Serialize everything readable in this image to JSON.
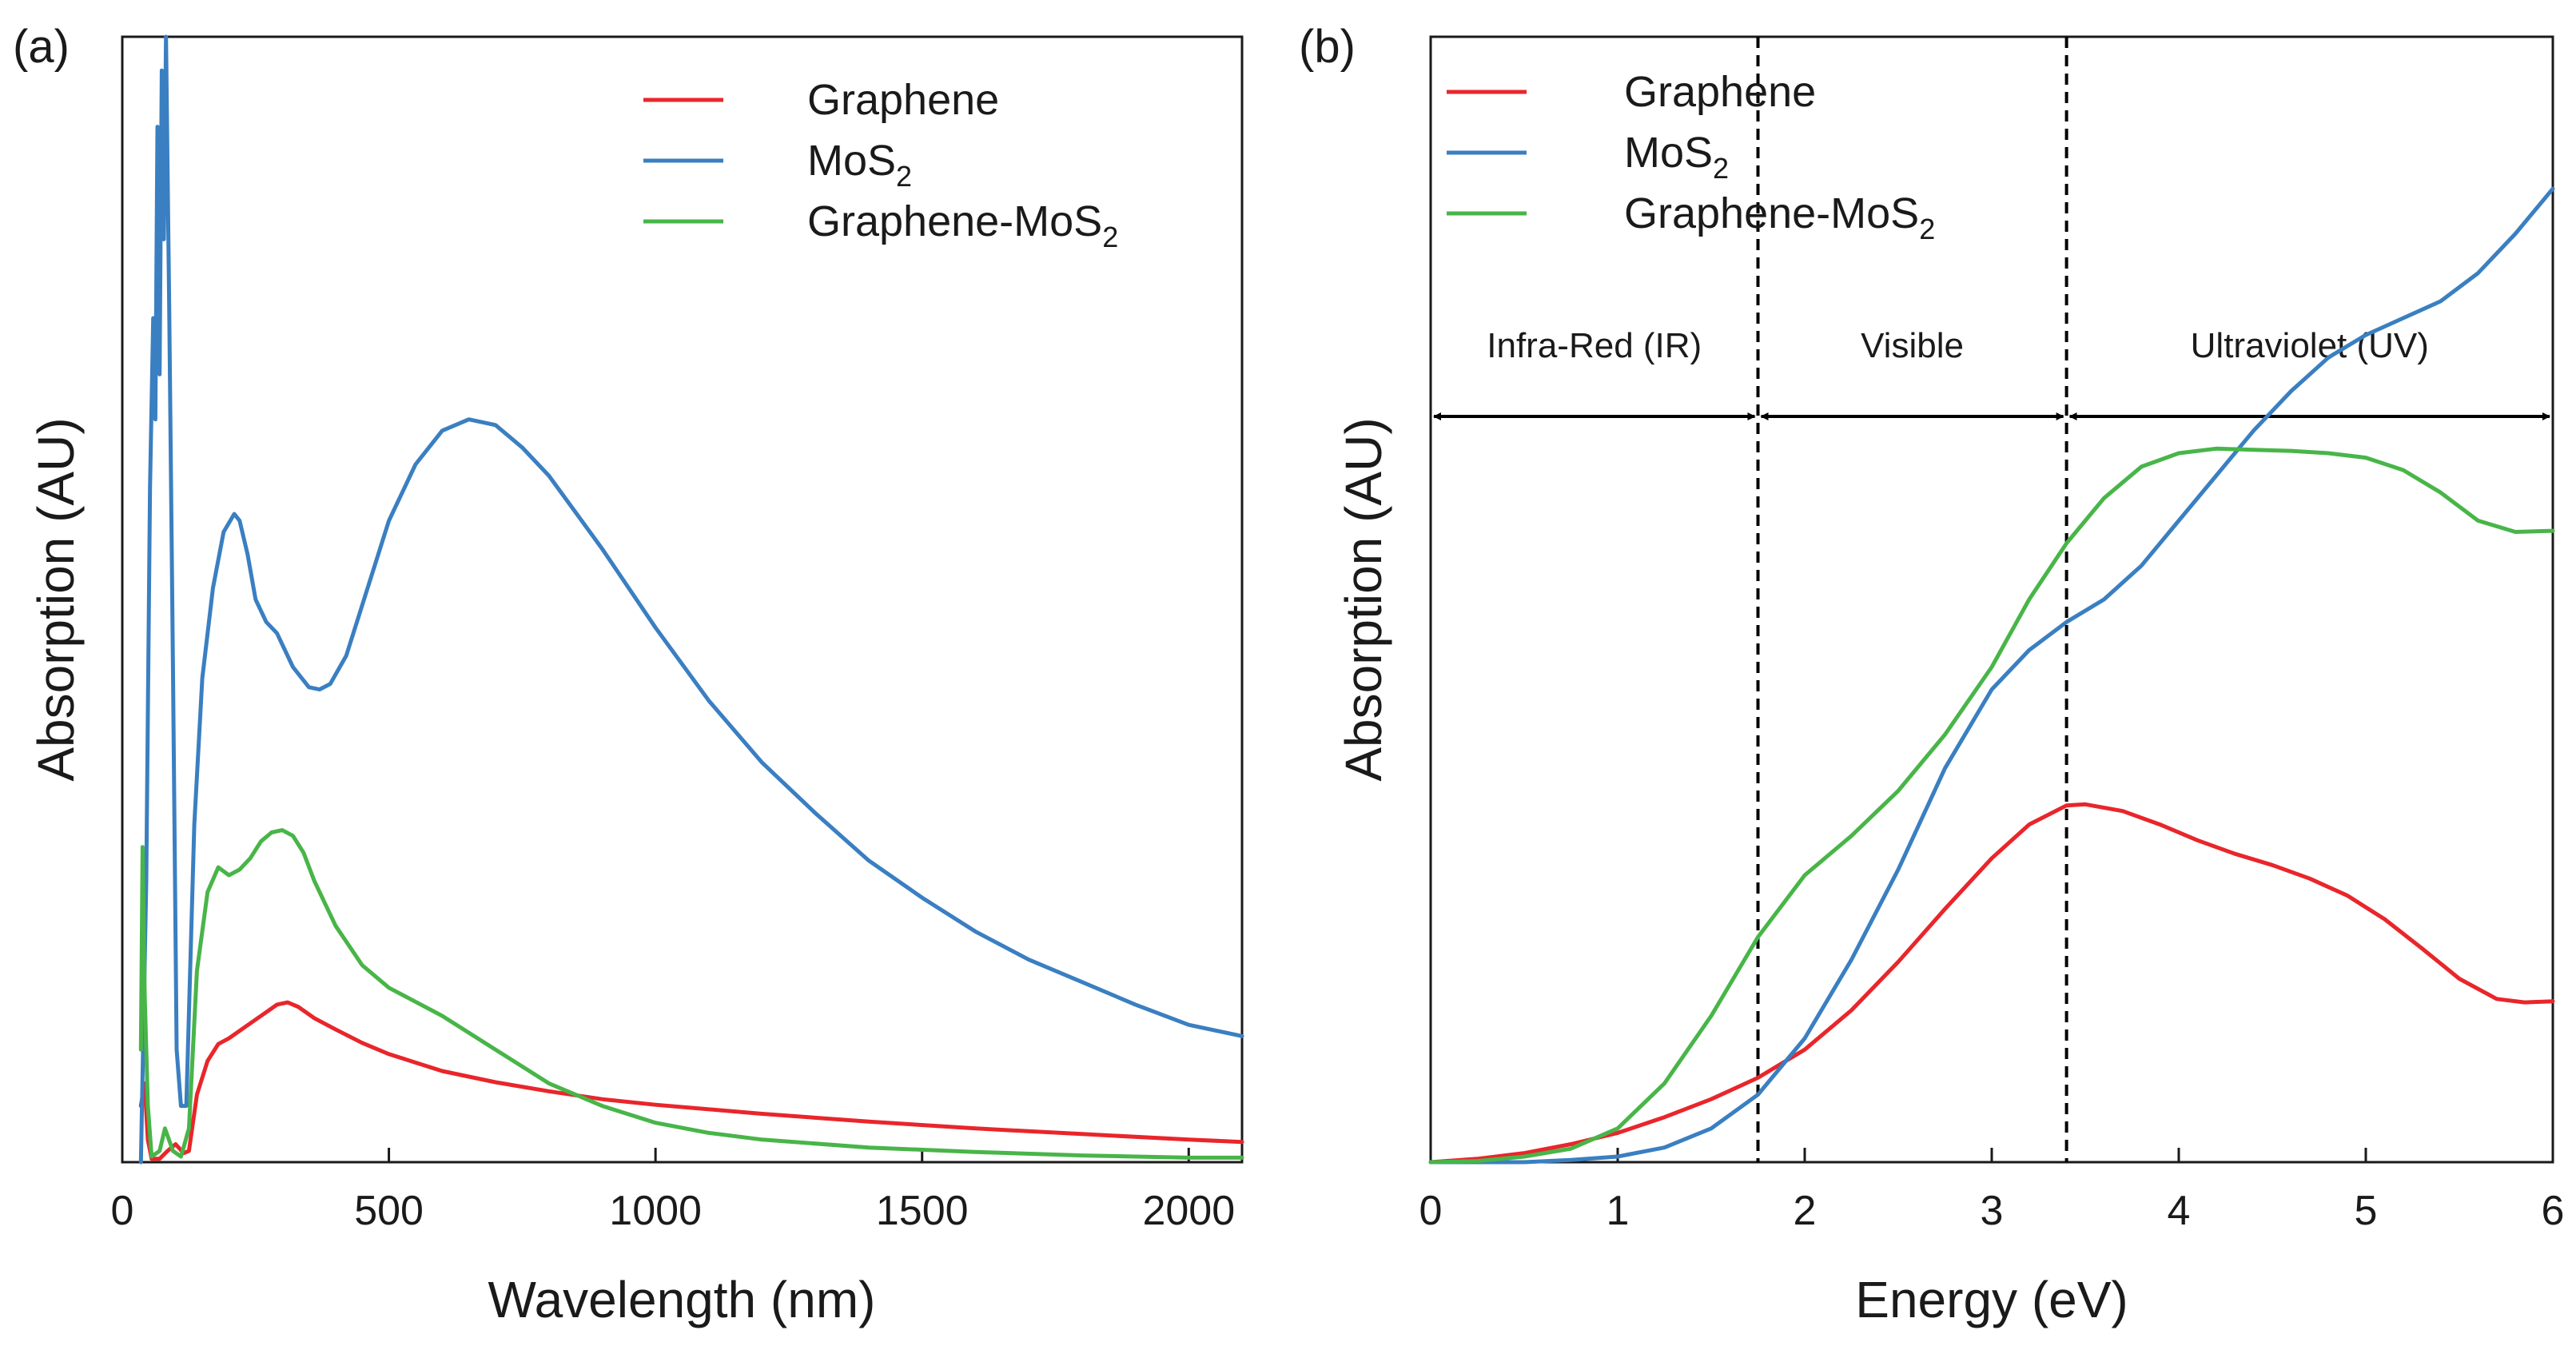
{
  "colors": {
    "Graphene": "#e8262b",
    "MoS2": "#3a7fc1",
    "Graphene-MoS2": "#48b548"
  },
  "chart_data": [
    {
      "panel": "(a)",
      "type": "line",
      "xlabel": "Wavelength (nm)",
      "ylabel": "Absorption (AU)",
      "xlim": [
        0,
        2100
      ],
      "ylim": [
        0,
        1
      ],
      "xticks": [
        0,
        500,
        1000,
        1500,
        2000
      ],
      "xtick_labels": [
        "0",
        "500",
        "1000",
        "1500",
        "2000"
      ],
      "legend_position": "top-right",
      "legend": [
        {
          "key": "Graphene",
          "base": "Graphene",
          "sub": ""
        },
        {
          "key": "MoS2",
          "base": "MoS",
          "sub": "2"
        },
        {
          "key": "Graphene-MoS2",
          "base": "Graphene-MoS",
          "sub": "2"
        }
      ],
      "series": [
        {
          "name": "Graphene",
          "x": [
            35,
            42,
            48,
            55,
            70,
            85,
            100,
            115,
            125,
            140,
            160,
            180,
            200,
            230,
            260,
            290,
            310,
            330,
            360,
            400,
            450,
            500,
            600,
            700,
            800,
            900,
            1000,
            1200,
            1400,
            1600,
            1800,
            2000,
            2100
          ],
          "y": [
            0.05,
            0.07,
            0.02,
            0.003,
            0.003,
            0.01,
            0.016,
            0.008,
            0.01,
            0.06,
            0.09,
            0.105,
            0.11,
            0.12,
            0.13,
            0.14,
            0.142,
            0.138,
            0.128,
            0.118,
            0.106,
            0.096,
            0.081,
            0.071,
            0.063,
            0.056,
            0.051,
            0.043,
            0.036,
            0.03,
            0.025,
            0.02,
            0.018
          ]
        },
        {
          "name": "MoS2",
          "x": [
            35,
            45,
            52,
            58,
            62,
            66,
            70,
            74,
            78,
            82,
            88,
            95,
            102,
            110,
            120,
            135,
            150,
            170,
            190,
            210,
            220,
            235,
            250,
            270,
            290,
            320,
            350,
            370,
            390,
            420,
            460,
            500,
            550,
            600,
            650,
            700,
            750,
            800,
            900,
            1000,
            1100,
            1200,
            1300,
            1400,
            1500,
            1600,
            1700,
            1800,
            1900,
            2000,
            2100
          ],
          "y": [
            0.0,
            0.25,
            0.6,
            0.75,
            0.66,
            0.92,
            0.7,
            0.97,
            0.82,
            1.0,
            0.76,
            0.44,
            0.1,
            0.05,
            0.05,
            0.3,
            0.43,
            0.51,
            0.56,
            0.576,
            0.57,
            0.54,
            0.5,
            0.48,
            0.47,
            0.44,
            0.422,
            0.42,
            0.425,
            0.45,
            0.51,
            0.57,
            0.62,
            0.65,
            0.66,
            0.655,
            0.635,
            0.61,
            0.545,
            0.475,
            0.41,
            0.355,
            0.31,
            0.268,
            0.235,
            0.205,
            0.18,
            0.16,
            0.14,
            0.122,
            0.112
          ]
        },
        {
          "name": "Graphene-MoS2",
          "x": [
            35,
            38,
            42,
            48,
            55,
            70,
            80,
            95,
            110,
            125,
            140,
            160,
            180,
            200,
            220,
            240,
            260,
            280,
            300,
            320,
            340,
            360,
            400,
            450,
            500,
            600,
            700,
            800,
            900,
            1000,
            1100,
            1200,
            1400,
            1600,
            1800,
            2000,
            2100
          ],
          "y": [
            0.1,
            0.28,
            0.15,
            0.05,
            0.005,
            0.01,
            0.03,
            0.01,
            0.005,
            0.03,
            0.17,
            0.24,
            0.262,
            0.255,
            0.26,
            0.27,
            0.285,
            0.293,
            0.295,
            0.29,
            0.275,
            0.25,
            0.21,
            0.175,
            0.155,
            0.13,
            0.1,
            0.07,
            0.05,
            0.035,
            0.026,
            0.02,
            0.013,
            0.009,
            0.006,
            0.004,
            0.004
          ]
        }
      ]
    },
    {
      "panel": "(b)",
      "type": "line",
      "xlabel": "Energy (eV)",
      "ylabel": "Absorption (AU)",
      "xlim": [
        0,
        6
      ],
      "ylim": [
        0,
        1
      ],
      "xticks": [
        0,
        1,
        2,
        3,
        4,
        5,
        6
      ],
      "xtick_labels": [
        "0",
        "1",
        "2",
        "3",
        "4",
        "5",
        "6"
      ],
      "legend_position": "top-left",
      "legend": [
        {
          "key": "Graphene",
          "base": "Graphene",
          "sub": ""
        },
        {
          "key": "MoS2",
          "base": "MoS",
          "sub": "2"
        },
        {
          "key": "Graphene-MoS2",
          "base": "Graphene-MoS",
          "sub": "2"
        }
      ],
      "regions": [
        {
          "label": "Infra-Red (IR)",
          "from": 0,
          "to": 1.75
        },
        {
          "label": "Visible",
          "from": 1.75,
          "to": 3.4
        },
        {
          "label": "Ultraviolet (UV)",
          "from": 3.4,
          "to": 6
        }
      ],
      "dividers": [
        1.75,
        3.4
      ],
      "series": [
        {
          "name": "Graphene",
          "x": [
            0,
            0.25,
            0.5,
            0.75,
            1.0,
            1.25,
            1.5,
            1.75,
            2.0,
            2.25,
            2.5,
            2.75,
            3.0,
            3.2,
            3.4,
            3.5,
            3.7,
            3.9,
            4.1,
            4.3,
            4.5,
            4.7,
            4.9,
            5.1,
            5.3,
            5.5,
            5.7,
            5.85,
            6.0
          ],
          "y": [
            0.0,
            0.003,
            0.008,
            0.016,
            0.026,
            0.04,
            0.056,
            0.075,
            0.1,
            0.135,
            0.178,
            0.225,
            0.27,
            0.3,
            0.317,
            0.318,
            0.312,
            0.3,
            0.286,
            0.274,
            0.264,
            0.252,
            0.237,
            0.216,
            0.19,
            0.163,
            0.145,
            0.142,
            0.143
          ]
        },
        {
          "name": "MoS2",
          "x": [
            0,
            0.25,
            0.5,
            0.75,
            1.0,
            1.25,
            1.5,
            1.75,
            2.0,
            2.25,
            2.5,
            2.75,
            3.0,
            3.2,
            3.4,
            3.6,
            3.8,
            4.0,
            4.2,
            4.4,
            4.6,
            4.8,
            5.0,
            5.2,
            5.4,
            5.6,
            5.8,
            6.0
          ],
          "y": [
            0.0,
            0.0,
            0.0,
            0.002,
            0.005,
            0.013,
            0.03,
            0.06,
            0.11,
            0.18,
            0.26,
            0.35,
            0.42,
            0.455,
            0.48,
            0.5,
            0.53,
            0.57,
            0.61,
            0.65,
            0.685,
            0.715,
            0.735,
            0.75,
            0.765,
            0.79,
            0.825,
            0.865
          ]
        },
        {
          "name": "Graphene-MoS2",
          "x": [
            0,
            0.25,
            0.5,
            0.75,
            1.0,
            1.25,
            1.5,
            1.75,
            2.0,
            2.25,
            2.5,
            2.75,
            3.0,
            3.2,
            3.4,
            3.6,
            3.8,
            4.0,
            4.2,
            4.4,
            4.6,
            4.8,
            5.0,
            5.2,
            5.4,
            5.6,
            5.8,
            6.0
          ],
          "y": [
            0.0,
            0.001,
            0.005,
            0.012,
            0.03,
            0.07,
            0.13,
            0.2,
            0.255,
            0.29,
            0.33,
            0.38,
            0.44,
            0.5,
            0.55,
            0.59,
            0.618,
            0.63,
            0.634,
            0.633,
            0.632,
            0.63,
            0.626,
            0.615,
            0.595,
            0.57,
            0.56,
            0.561
          ]
        }
      ]
    }
  ]
}
